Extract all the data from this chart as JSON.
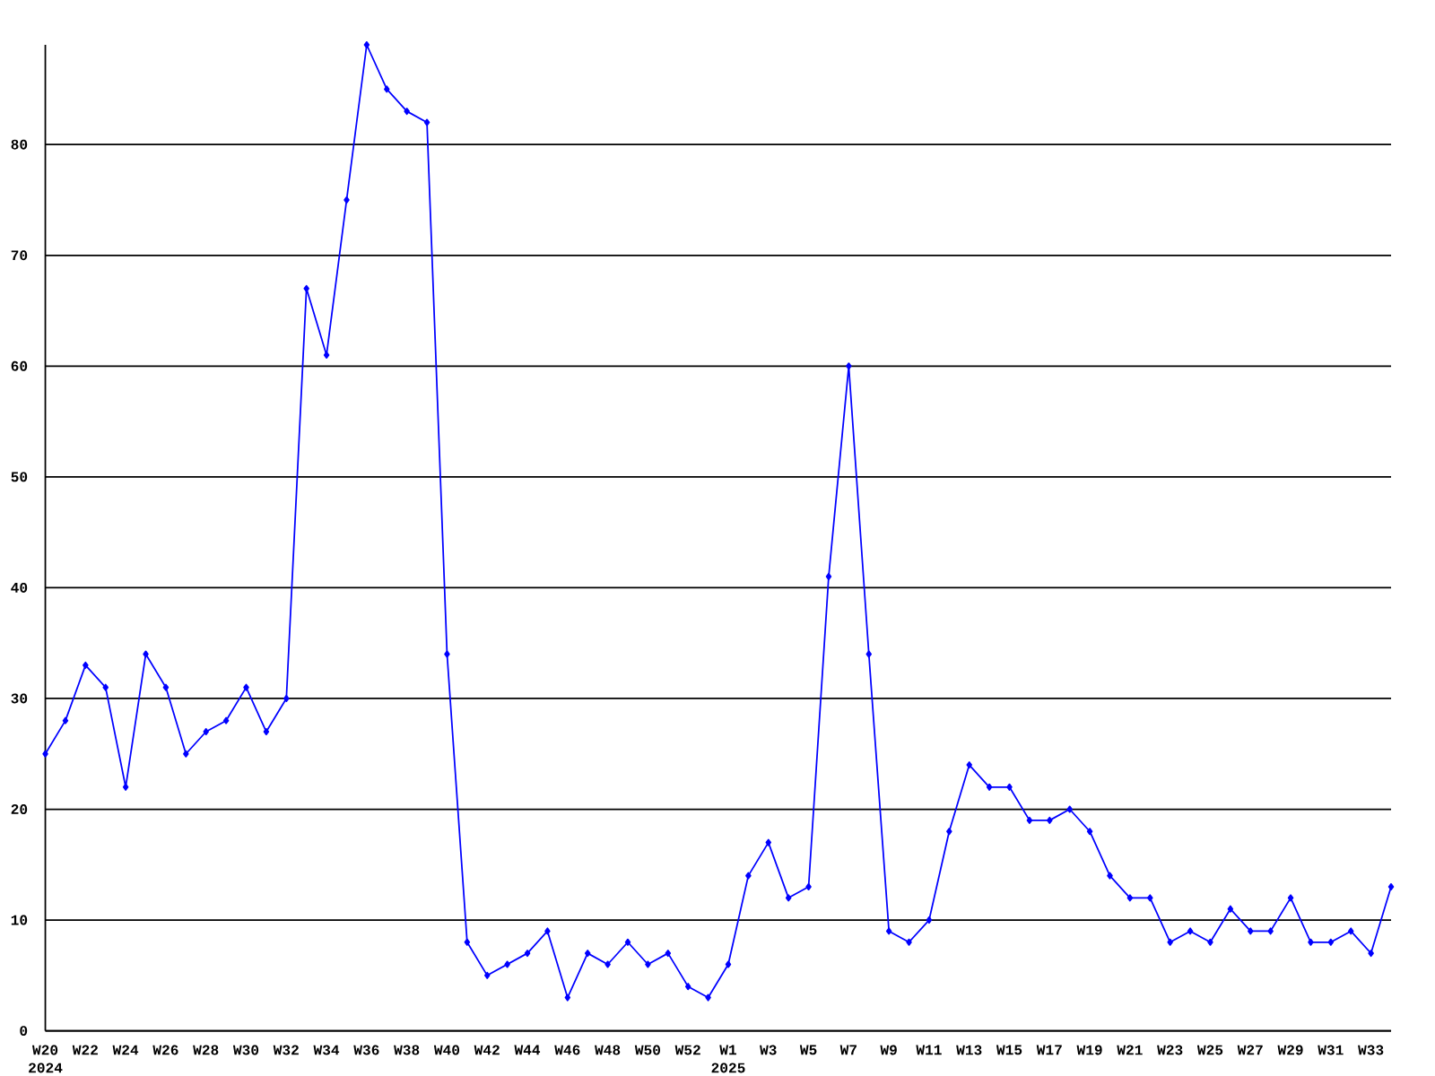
{
  "chart_data": {
    "type": "line",
    "categories": [
      "W20",
      null,
      "W22",
      null,
      "W24",
      null,
      "W26",
      null,
      "W28",
      null,
      "W30",
      null,
      "W32",
      null,
      "W34",
      null,
      "W36",
      null,
      "W38",
      null,
      "W40",
      null,
      "W42",
      null,
      "W44",
      null,
      "W46",
      null,
      "W48",
      null,
      "W50",
      null,
      "W52",
      null,
      "W1",
      null,
      "W3",
      null,
      "W5",
      null,
      "W7",
      null,
      "W9",
      null,
      "W11",
      null,
      "W13",
      null,
      "W15",
      null,
      "W17",
      null,
      "W19",
      null,
      "W21",
      null,
      "W23",
      null,
      "W25",
      null,
      "W27",
      null,
      "W29",
      null,
      "W31",
      null,
      "W33",
      null
    ],
    "series": [
      {
        "color": "#0000ff",
        "values": [
          25,
          28,
          33,
          31,
          22,
          34,
          31,
          25,
          27,
          28,
          31,
          27,
          30,
          67,
          61,
          75,
          89,
          85,
          83,
          82,
          34,
          8,
          5,
          6,
          7,
          9,
          3,
          7,
          6,
          8,
          6,
          7,
          4,
          3,
          6,
          14,
          17,
          12,
          13,
          41,
          60,
          34,
          9,
          8,
          10,
          18,
          24,
          22,
          22,
          19,
          19,
          20,
          18,
          14,
          12,
          12,
          8,
          9,
          8,
          11,
          9,
          9,
          12,
          8,
          8,
          9,
          7,
          13
        ]
      }
    ],
    "ylim": [
      0,
      89
    ],
    "yticks": [
      0,
      10,
      20,
      30,
      40,
      50,
      60,
      70,
      80
    ],
    "grid": "y",
    "marker": "diamond",
    "line_style": "solid",
    "annotations": [
      "2024",
      "2025"
    ]
  }
}
